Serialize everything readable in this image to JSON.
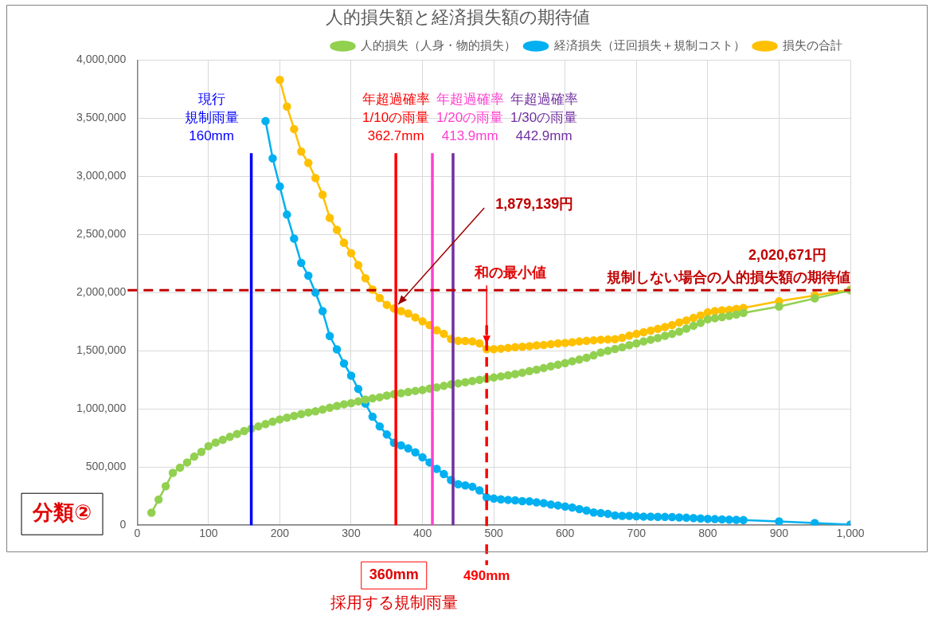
{
  "chart_data": {
    "type": "line",
    "title": "人的損失額と経済損失額の期待値",
    "x": [
      20,
      30,
      40,
      50,
      60,
      70,
      80,
      90,
      100,
      110,
      120,
      130,
      140,
      150,
      160,
      170,
      180,
      190,
      200,
      210,
      220,
      230,
      240,
      250,
      260,
      270,
      280,
      290,
      300,
      310,
      320,
      330,
      340,
      350,
      360,
      370,
      380,
      390,
      400,
      410,
      420,
      430,
      440,
      450,
      460,
      470,
      480,
      490,
      500,
      510,
      520,
      530,
      540,
      550,
      560,
      570,
      580,
      590,
      600,
      610,
      620,
      630,
      640,
      650,
      660,
      670,
      680,
      690,
      700,
      710,
      720,
      730,
      740,
      750,
      760,
      770,
      780,
      790,
      800,
      810,
      820,
      830,
      840,
      850,
      900,
      950,
      1000
    ],
    "series": [
      {
        "name": "人的損失（人身・物的損失）",
        "color": "#92d050",
        "values": [
          107000,
          220000,
          335000,
          450000,
          495000,
          540000,
          590000,
          630000,
          680000,
          710000,
          735000,
          760000,
          785000,
          810000,
          830000,
          850000,
          870000,
          890000,
          910000,
          925000,
          940000,
          955000,
          970000,
          980000,
          995000,
          1010000,
          1025000,
          1040000,
          1050000,
          1065000,
          1080000,
          1090000,
          1100000,
          1115000,
          1126000,
          1135000,
          1145000,
          1155000,
          1163000,
          1175000,
          1185000,
          1198000,
          1210000,
          1220000,
          1230000,
          1240000,
          1250000,
          1260000,
          1270000,
          1280000,
          1290000,
          1300000,
          1312000,
          1325000,
          1338000,
          1352000,
          1366000,
          1380000,
          1394000,
          1410000,
          1425000,
          1440000,
          1460000,
          1485000,
          1500000,
          1515000,
          1530000,
          1548000,
          1564000,
          1580000,
          1595000,
          1610000,
          1628000,
          1645000,
          1665000,
          1690000,
          1715000,
          1740000,
          1770000,
          1780000,
          1790000,
          1800000,
          1812000,
          1825000,
          1880000,
          1950000,
          2020000
        ]
      },
      {
        "name": "経済損失（迂回損失＋規制コスト）",
        "color": "#00b0f0",
        "values": [
          null,
          null,
          null,
          null,
          null,
          null,
          null,
          null,
          null,
          null,
          null,
          null,
          null,
          null,
          null,
          null,
          3475000,
          3155000,
          2913000,
          2671000,
          2464000,
          2255000,
          2146000,
          2000000,
          1841000,
          1627000,
          1512000,
          1390000,
          1286000,
          1172000,
          1046000,
          933000,
          850000,
          780000,
          708000,
          686000,
          660000,
          627000,
          584000,
          540000,
          484000,
          440000,
          388000,
          353000,
          342000,
          331000,
          300000,
          240000,
          229000,
          222000,
          218000,
          214000,
          207000,
          205000,
          196000,
          190000,
          178000,
          170000,
          161000,
          152000,
          139000,
          126000,
          109000,
          104000,
          98000,
          83000,
          80000,
          80000,
          76000,
          74000,
          73000,
          72000,
          71000,
          70000,
          67000,
          64000,
          61000,
          58000,
          54000,
          52000,
          50000,
          48000,
          46000,
          44000,
          33000,
          18000,
          5000
        ]
      },
      {
        "name": "損失の合計",
        "color": "#ffc000",
        "values": [
          null,
          null,
          null,
          null,
          null,
          null,
          null,
          null,
          null,
          null,
          null,
          null,
          null,
          null,
          null,
          null,
          null,
          null,
          3830000,
          3600000,
          3407000,
          3213000,
          3115000,
          2985000,
          2841000,
          2643000,
          2540000,
          2429000,
          2340000,
          2237000,
          2124000,
          2026000,
          1954000,
          1895000,
          1863000,
          1841000,
          1820000,
          1787000,
          1754000,
          1721000,
          1677000,
          1645000,
          1601000,
          1586000,
          1584000,
          1580000,
          1564000,
          1514000,
          1514000,
          1518000,
          1525000,
          1531000,
          1535000,
          1540000,
          1547000,
          1550000,
          1557000,
          1564000,
          1567000,
          1573000,
          1580000,
          1586000,
          1590000,
          1595000,
          1597000,
          1600000,
          1612000,
          1630000,
          1645000,
          1660000,
          1673000,
          1688000,
          1704000,
          1721000,
          1743000,
          1760000,
          1782000,
          1804000,
          1830000,
          1841000,
          1848000,
          1852000,
          1860000,
          1869000,
          1926000,
          1976000,
          2026000
        ]
      }
    ],
    "xlim": [
      0,
      1000
    ],
    "xticks": [
      0,
      100,
      200,
      300,
      400,
      500,
      600,
      700,
      800,
      900,
      {
        "value": 1000,
        "label": "1,000"
      }
    ],
    "ylim": [
      0,
      4000000
    ],
    "yticks": [
      0,
      {
        "value": 500000,
        "label": "500,000"
      },
      {
        "value": 1000000,
        "label": "1,000,000"
      },
      {
        "value": 1500000,
        "label": "1,500,000"
      },
      {
        "value": 2000000,
        "label": "2,000,000"
      },
      {
        "value": 2500000,
        "label": "2,500,000"
      },
      {
        "value": 3000000,
        "label": "3,000,000"
      },
      {
        "value": 3500000,
        "label": "3,500,000"
      },
      {
        "value": 4000000,
        "label": "4,000,000"
      }
    ],
    "grid": true,
    "legend": "top right",
    "marker": "circle",
    "line_style": "solid",
    "ref_lines": [
      {
        "axis": "x",
        "value": 160,
        "label": "現行規制雨量\n160mm",
        "color": "#0000ff",
        "line_style": "solid"
      },
      {
        "axis": "x",
        "value": 362.7,
        "label": "年超過確率\n1/10の雨量\n362.7mm",
        "color": "#ff0000",
        "line_style": "solid"
      },
      {
        "axis": "x",
        "value": 413.9,
        "label": "年超過確率\n1/20の雨量\n413.9mm",
        "color": "#ff40d0",
        "line_style": "solid"
      },
      {
        "axis": "x",
        "value": 442.9,
        "label": "年超過確率\n1/30の雨量\n442.9mm",
        "color": "#7030a0",
        "line_style": "solid"
      },
      {
        "axis": "x",
        "value": 490,
        "label": "490mm",
        "color": "#ff0000",
        "line_style": "dashed"
      },
      {
        "axis": "y",
        "value": 2020671,
        "label": "規制しない場合の人的損失額の期待値",
        "color": "#c00000",
        "line_style": "dashed"
      }
    ],
    "annotations": [
      {
        "text": "1,879,139円",
        "x": 362.7,
        "y": 1879139
      },
      {
        "text": "和の最小値",
        "x": 490,
        "y": 1514000
      },
      {
        "text": "2,020,671円",
        "x": 1000,
        "y": 2020671
      },
      {
        "text": "360mm",
        "x": 360,
        "y": 0
      },
      "採用する規制雨量",
      "分類②"
    ]
  }
}
